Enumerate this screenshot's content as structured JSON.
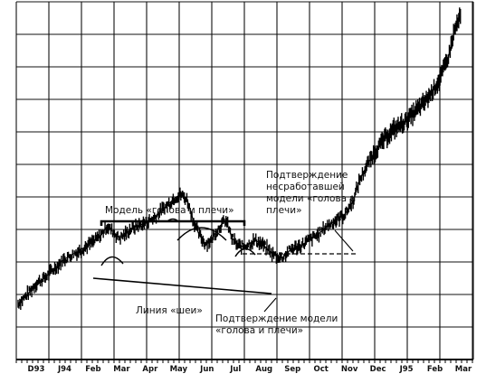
{
  "chart_data": {
    "type": "line",
    "title": "",
    "xlabel": "",
    "ylabel": "",
    "x_tick_labels": [
      "D93",
      "J94",
      "Feb",
      "Mar",
      "Apr",
      "May",
      "Jun",
      "Jul",
      "Aug",
      "Sep",
      "Oct",
      "Nov",
      "Dec",
      "J95",
      "Feb",
      "Mar"
    ],
    "x_range": [
      0,
      15
    ],
    "y_range": [
      0,
      11
    ],
    "grid": true,
    "legend": "none",
    "series": [
      {
        "values_x": [
          0,
          0.3,
          0.6,
          0.9,
          1.2,
          1.5,
          1.8,
          2.0,
          2.3,
          2.6,
          2.8,
          3.0,
          3.2,
          3.4,
          3.6,
          3.8,
          4.0,
          4.3,
          4.6,
          4.9,
          5.1,
          5.3,
          5.5,
          5.7,
          5.9,
          6.1,
          6.3,
          6.5,
          6.8,
          7.0,
          7.2,
          7.4,
          7.6,
          7.8,
          8.0,
          8.3,
          8.6,
          8.9,
          9.2,
          9.5,
          9.8,
          10.1,
          10.4,
          10.7,
          11.0,
          11.3,
          11.5,
          11.8,
          12.1,
          12.4,
          12.7,
          13.0,
          13.3,
          13.6,
          13.9,
          14.2,
          14.5,
          14.7,
          14.9
        ],
        "values_y": [
          1.0,
          1.3,
          1.7,
          1.9,
          2.2,
          2.5,
          2.7,
          2.8,
          3.0,
          3.2,
          3.4,
          3.7,
          3.5,
          3.3,
          3.4,
          3.6,
          3.7,
          3.8,
          4.0,
          4.3,
          4.5,
          4.7,
          4.8,
          4.6,
          3.9,
          3.4,
          3.1,
          3.2,
          3.7,
          3.9,
          3.3,
          3.0,
          3.0,
          3.1,
          3.2,
          3.0,
          2.7,
          2.6,
          2.9,
          3.0,
          3.2,
          3.4,
          3.7,
          3.9,
          4.1,
          4.6,
          5.3,
          5.9,
          6.4,
          6.8,
          7.1,
          7.3,
          7.6,
          7.9,
          8.3,
          8.8,
          9.6,
          10.5,
          11.0
        ]
      }
    ],
    "annotations": [
      {
        "id": "hs_model",
        "lines": [
          "Модель «голова и плечи»"
        ]
      },
      {
        "id": "neckline",
        "lines": [
          "Линия «шеи»"
        ]
      },
      {
        "id": "confirm_hs",
        "lines": [
          "Подтверждение модели",
          "«голова и плечи»"
        ]
      },
      {
        "id": "confirm_failed",
        "lines": [
          "Подтверждение",
          "несработавшей",
          "модели «голова и",
          "плечи»"
        ]
      }
    ]
  }
}
